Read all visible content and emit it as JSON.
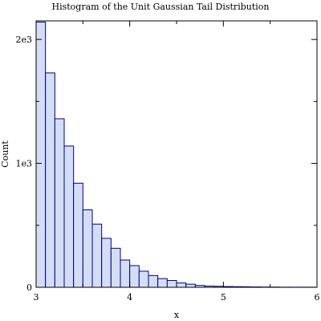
{
  "chart_data": {
    "type": "bar",
    "title": "Histogram of the Unit Gaussian Tail Distribution",
    "xlabel": "x",
    "ylabel": "Count",
    "xlim": [
      3,
      6
    ],
    "ylim": [
      0,
      2150
    ],
    "bin_width": 0.1,
    "bins": [
      3.0,
      3.1,
      3.2,
      3.3,
      3.4,
      3.5,
      3.6,
      3.7,
      3.8,
      3.9,
      4.0,
      4.1,
      4.2,
      4.3,
      4.4,
      4.5,
      4.6,
      4.7,
      4.8,
      4.9,
      5.0,
      5.1,
      5.2,
      5.3,
      5.4,
      5.5,
      5.6,
      5.7,
      5.8,
      5.9
    ],
    "values": [
      2140,
      1730,
      1360,
      1140,
      840,
      625,
      510,
      395,
      315,
      220,
      175,
      130,
      95,
      70,
      55,
      35,
      25,
      15,
      10,
      8,
      6,
      5,
      4,
      3,
      2,
      2,
      1,
      1,
      1,
      1
    ],
    "x_ticks": [
      {
        "value": 3,
        "label": "3"
      },
      {
        "value": 4,
        "label": "4"
      },
      {
        "value": 5,
        "label": "5"
      },
      {
        "value": 6,
        "label": "6"
      }
    ],
    "y_ticks": [
      {
        "value": 0,
        "label": "0"
      },
      {
        "value": 1000,
        "label": "1e3"
      },
      {
        "value": 2000,
        "label": "2e3"
      }
    ],
    "y_minor_ticks": [
      500,
      1500
    ],
    "x_minor_ticks": [
      3.5,
      4.5,
      5.5
    ],
    "grid": false,
    "colors": {
      "bar_fill": "#d3def5",
      "bar_edge": "#00008b"
    }
  }
}
